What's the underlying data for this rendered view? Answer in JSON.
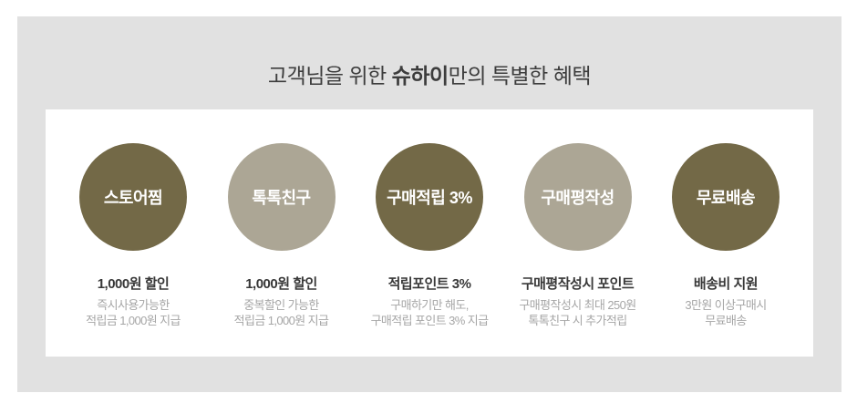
{
  "page": {
    "background": "#ffffff",
    "panel_background": "#e1e1e1",
    "card_background": "#ffffff"
  },
  "colors": {
    "circle_dark": "#736947",
    "circle_light": "#aca695",
    "title_text": "#3d3d3d",
    "benefit_title_text": "#383838",
    "benefit_desc_text": "#a6a6a6",
    "circle_label_text": "#ffffff"
  },
  "header": {
    "title_prefix": "고객님을 위한 ",
    "title_brand": "슈하이",
    "title_suffix": "만의 특별한 혜택"
  },
  "benefits": [
    {
      "circle_label": "스토어찜",
      "circle_color": "#736947",
      "title": "1,000원 할인",
      "desc_line1": "즉시사용가능한",
      "desc_line2": "적립금 1,000원 지급"
    },
    {
      "circle_label": "톡톡친구",
      "circle_color": "#aca695",
      "title": "1,000원 할인",
      "desc_line1": "중복할인 가능한",
      "desc_line2": "적립금 1,000원 지급"
    },
    {
      "circle_label": "구매적립 3%",
      "circle_color": "#736947",
      "title": "적립포인트 3%",
      "desc_line1": "구매하기만 해도,",
      "desc_line2": "구매적립 포인트 3% 지급"
    },
    {
      "circle_label": "구매평작성",
      "circle_color": "#aca695",
      "title": "구매평작성시 포인트",
      "desc_line1": "구매평작성시 최대 250원",
      "desc_line2": "톡톡친구 시 추가적립"
    },
    {
      "circle_label": "무료배송",
      "circle_color": "#736947",
      "title": "배송비 지원",
      "desc_line1": "3만원 이상구매시",
      "desc_line2": "무료배송"
    }
  ]
}
